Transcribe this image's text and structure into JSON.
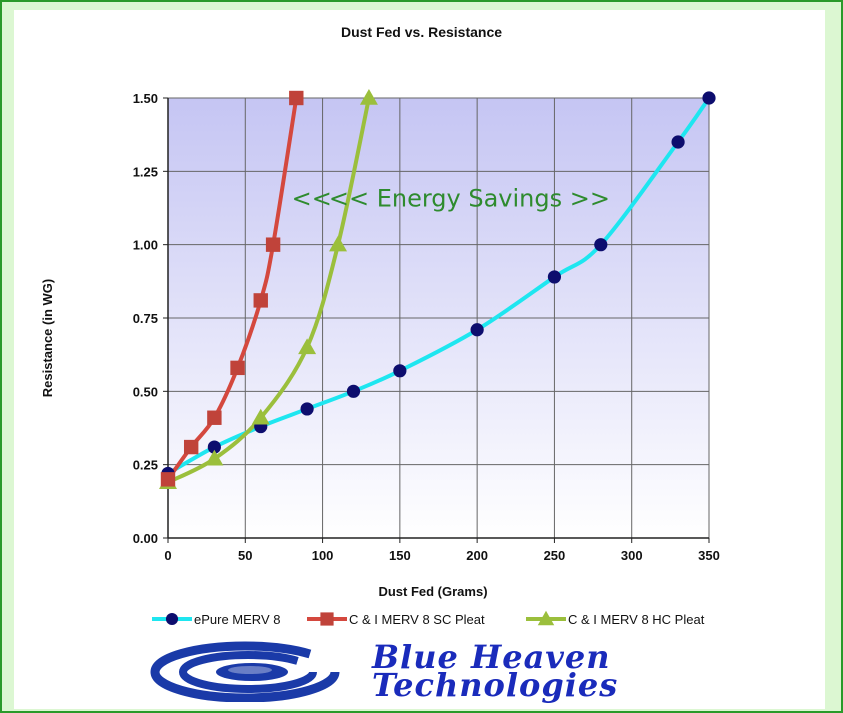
{
  "chart_data": {
    "type": "line",
    "title": "Dust Fed vs. Resistance",
    "xlabel": "Dust Fed (Grams)",
    "ylabel": "Resistance (in WG)",
    "xlim": [
      0,
      350
    ],
    "ylim": [
      0,
      1.5
    ],
    "x_ticks": [
      "0",
      "50",
      "100",
      "150",
      "200",
      "250",
      "300",
      "350"
    ],
    "y_ticks": [
      "0.00",
      "0.25",
      "0.50",
      "0.75",
      "1.00",
      "1.25",
      "1.50"
    ],
    "grid": true,
    "legend_position": "bottom",
    "series": [
      {
        "name": "ePure MERV 8",
        "color": "#1ee6f0",
        "marker": "circle",
        "marker_color": "#0d0d6e",
        "points": [
          [
            0,
            0.22
          ],
          [
            30,
            0.31
          ],
          [
            60,
            0.38
          ],
          [
            90,
            0.44
          ],
          [
            120,
            0.5
          ],
          [
            150,
            0.57
          ],
          [
            200,
            0.71
          ],
          [
            250,
            0.89
          ],
          [
            280,
            1.0
          ],
          [
            330,
            1.35
          ],
          [
            350,
            1.5
          ]
        ]
      },
      {
        "name": "C & I MERV 8 SC Pleat",
        "color": "#d4483e",
        "marker": "square",
        "marker_color": "#c0433a",
        "points": [
          [
            0,
            0.2
          ],
          [
            15,
            0.31
          ],
          [
            30,
            0.41
          ],
          [
            45,
            0.58
          ],
          [
            60,
            0.81
          ],
          [
            68,
            1.0
          ],
          [
            83,
            1.5
          ]
        ]
      },
      {
        "name": "C & I MERV 8 HC Pleat",
        "color": "#9bbf3c",
        "marker": "triangle",
        "marker_color": "#9bbf3c",
        "points": [
          [
            0,
            0.19
          ],
          [
            30,
            0.27
          ],
          [
            60,
            0.41
          ],
          [
            90,
            0.65
          ],
          [
            110,
            1.0
          ],
          [
            130,
            1.5
          ]
        ]
      }
    ],
    "annotations": [
      {
        "text": "<<",
        "x": 93,
        "y": 1.13
      },
      {
        "text": "<< Energy Savings >>",
        "x": 195,
        "y": 1.13
      }
    ]
  },
  "logo": {
    "line1": "Blue Heaven",
    "line2": "Technologies",
    "colors": {
      "swirl": "#1a3aa8",
      "text": "#1a2bbb"
    }
  }
}
